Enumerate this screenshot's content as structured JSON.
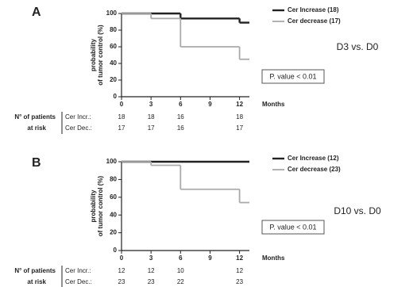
{
  "chart_data": [
    {
      "type": "step",
      "panel": "A",
      "ylabel": [
        "probability",
        "of tumor control (%)"
      ],
      "xlabel": "Months",
      "xlim": [
        0,
        13
      ],
      "xticks": [
        0,
        3,
        6,
        9,
        12
      ],
      "ylim": [
        0,
        100
      ],
      "yticks": [
        0,
        20,
        40,
        60,
        80,
        100
      ],
      "series": [
        {
          "name": "Cer Increase (18)",
          "color": "#222222",
          "x": [
            0,
            6,
            12
          ],
          "values": [
            100,
            94,
            89
          ]
        },
        {
          "name": "Cer decrease (17)",
          "color": "#aaaaaa",
          "x": [
            0,
            3,
            6,
            12
          ],
          "values": [
            100,
            94,
            60,
            45
          ]
        }
      ],
      "comparison": "D3 vs. D0",
      "p_value": "P. value < 0.01",
      "risk_table": {
        "title": [
          "N° of patients",
          "at risk"
        ],
        "rows": [
          {
            "label": "Cer Incr.:",
            "values": [
              18,
              18,
              16,
              null,
              18
            ]
          },
          {
            "label": "Cer Dec.:",
            "values": [
              17,
              17,
              16,
              null,
              17
            ]
          }
        ]
      }
    },
    {
      "type": "step",
      "panel": "B",
      "ylabel": [
        "probability",
        "of tumor control (%)"
      ],
      "xlabel": "Months",
      "xlim": [
        0,
        13
      ],
      "xticks": [
        0,
        3,
        6,
        9,
        12
      ],
      "ylim": [
        0,
        100
      ],
      "yticks": [
        0,
        20,
        40,
        60,
        80,
        100
      ],
      "series": [
        {
          "name": "Cer Increase (12)",
          "color": "#222222",
          "x": [
            0
          ],
          "values": [
            100
          ]
        },
        {
          "name": "Cer decrease (23)",
          "color": "#aaaaaa",
          "x": [
            0,
            3,
            6,
            12
          ],
          "values": [
            100,
            96,
            69,
            54
          ]
        }
      ],
      "comparison": "D10 vs. D0",
      "p_value": "P. value < 0.01",
      "risk_table": {
        "title": [
          "N° of patients",
          "at risk"
        ],
        "rows": [
          {
            "label": "Cer Incr.:",
            "values": [
              12,
              12,
              10,
              null,
              12
            ]
          },
          {
            "label": "Cer Dec.:",
            "values": [
              23,
              23,
              22,
              null,
              23
            ]
          }
        ]
      }
    }
  ]
}
